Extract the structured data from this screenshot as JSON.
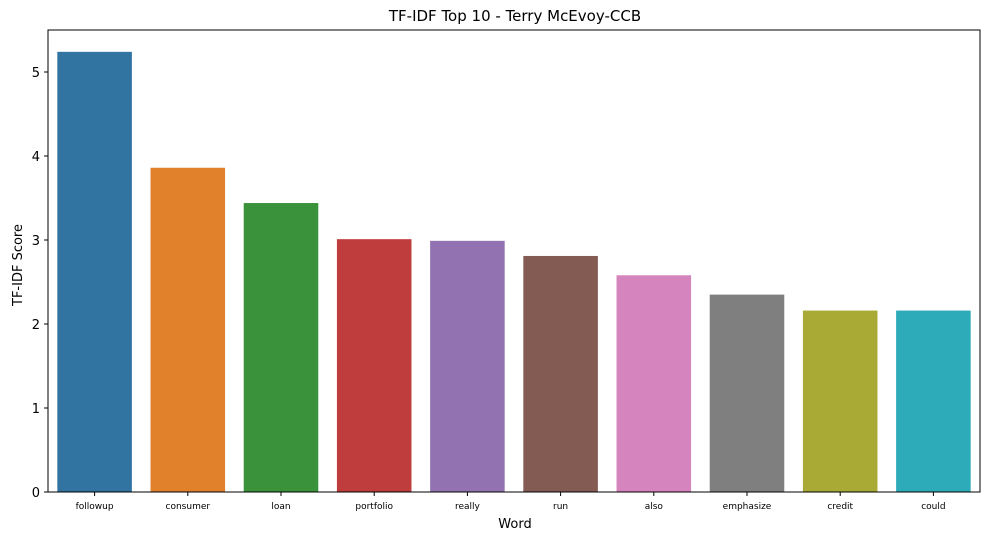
{
  "chart_data": {
    "type": "bar",
    "title": "TF-IDF Top 10 - Terry McEvoy-CCB",
    "xlabel": "Word",
    "ylabel": "TF-IDF Score",
    "categories": [
      "followup",
      "consumer",
      "loan",
      "portfolio",
      "really",
      "run",
      "also",
      "emphasize",
      "credit",
      "could"
    ],
    "values": [
      5.24,
      3.86,
      3.44,
      3.01,
      2.99,
      2.81,
      2.58,
      2.35,
      2.16,
      2.16
    ],
    "colors": [
      "#3274a1",
      "#e1812c",
      "#3a923a",
      "#c03d3e",
      "#9372b2",
      "#845b53",
      "#d684bd",
      "#7f7f7f",
      "#a9aa35",
      "#2eabb8"
    ],
    "ylim": [
      0,
      5.5
    ],
    "yticks": [
      0,
      1,
      2,
      3,
      4,
      5
    ],
    "grid": false,
    "legend": "none"
  }
}
